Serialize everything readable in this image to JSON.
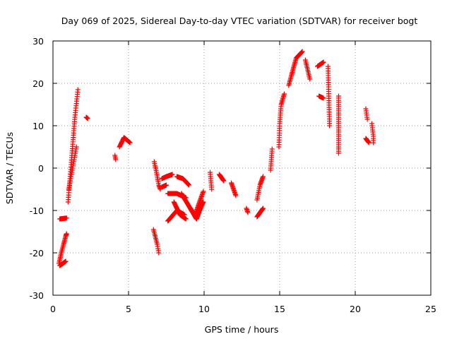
{
  "chart_data": {
    "type": "scatter",
    "title": "Day 069 of 2025, Sidereal Day-to-day VTEC variation (SDTVAR) for receiver bogt",
    "xlabel": "GPS time / hours",
    "ylabel": "SDTVAR / TECUs",
    "xlim": [
      0,
      25
    ],
    "ylim": [
      -30,
      30
    ],
    "xticks": [
      0,
      5,
      10,
      15,
      20,
      25
    ],
    "yticks": [
      -30,
      -20,
      -10,
      0,
      10,
      20,
      30
    ],
    "xtick_labels": [
      "0",
      "5",
      "10",
      "15",
      "20",
      "25"
    ],
    "ytick_labels": [
      "-30",
      "-20",
      "-10",
      "0",
      "10",
      "20",
      "30"
    ],
    "grid": true,
    "marker": "plus",
    "color": "#ff0000",
    "series": [
      {
        "name": "SDTVAR",
        "tracks": [
          [
            [
              0.45,
              -12.0
            ],
            [
              0.9,
              -11.8
            ]
          ],
          [
            [
              0.4,
              -22.5
            ],
            [
              0.55,
              -20.0
            ],
            [
              0.7,
              -18.0
            ],
            [
              0.85,
              -16.0
            ],
            [
              0.9,
              -15.5
            ]
          ],
          [
            [
              0.45,
              -23.0
            ],
            [
              0.85,
              -22.0
            ]
          ],
          [
            [
              1.0,
              -8.0
            ],
            [
              1.25,
              3.0
            ],
            [
              1.45,
              12.0
            ],
            [
              1.65,
              18.5
            ]
          ],
          [
            [
              1.05,
              -5.0
            ],
            [
              1.3,
              0.0
            ],
            [
              1.55,
              5.0
            ]
          ],
          [
            [
              2.2,
              12.0
            ],
            [
              2.3,
              11.7
            ]
          ],
          [
            [
              4.1,
              3.0
            ],
            [
              4.15,
              2.0
            ]
          ],
          [
            [
              4.4,
              5.0
            ],
            [
              4.7,
              7.2
            ],
            [
              5.1,
              6.0
            ]
          ],
          [
            [
              6.7,
              1.5
            ],
            [
              6.85,
              -1.0
            ],
            [
              7.0,
              -4.0
            ],
            [
              7.1,
              -5.0
            ]
          ],
          [
            [
              6.65,
              -14.5
            ],
            [
              6.9,
              -18.0
            ],
            [
              7.0,
              -20.0
            ]
          ],
          [
            [
              7.2,
              -2.5
            ],
            [
              7.5,
              -2.0
            ],
            [
              7.9,
              -1.5
            ]
          ],
          [
            [
              7.2,
              -4.5
            ],
            [
              7.5,
              -4.0
            ]
          ],
          [
            [
              7.6,
              -12.5
            ],
            [
              8.2,
              -10.0
            ],
            [
              8.7,
              -11.0
            ]
          ],
          [
            [
              7.6,
              -6.0
            ],
            [
              8.2,
              -6.0
            ],
            [
              8.8,
              -7.0
            ]
          ],
          [
            [
              8.2,
              -2.0
            ],
            [
              8.6,
              -2.5
            ],
            [
              9.0,
              -4.0
            ]
          ],
          [
            [
              8.5,
              -6.0
            ],
            [
              9.0,
              -9.0
            ],
            [
              9.5,
              -12.0
            ]
          ],
          [
            [
              8.0,
              -8.0
            ],
            [
              8.4,
              -11.0
            ],
            [
              8.8,
              -12.0
            ]
          ],
          [
            [
              9.4,
              -11.0
            ],
            [
              9.7,
              -8.0
            ],
            [
              9.95,
              -5.5
            ]
          ],
          [
            [
              9.1,
              -9.5
            ],
            [
              9.5,
              -12.0
            ],
            [
              9.9,
              -8.0
            ]
          ],
          [
            [
              9.5,
              -12.0
            ],
            [
              9.7,
              -10.0
            ],
            [
              9.95,
              -8.0
            ]
          ],
          [
            [
              10.4,
              -1.0
            ],
            [
              10.5,
              -5.0
            ]
          ],
          [
            [
              11.0,
              -1.5
            ],
            [
              11.3,
              -3.0
            ]
          ],
          [
            [
              11.8,
              -3.5
            ],
            [
              12.1,
              -6.5
            ]
          ],
          [
            [
              12.8,
              -9.5
            ],
            [
              12.9,
              -10.5
            ]
          ],
          [
            [
              13.5,
              -11.5
            ],
            [
              13.9,
              -9.5
            ]
          ],
          [
            [
              13.5,
              -7.5
            ],
            [
              13.7,
              -4.0
            ],
            [
              13.9,
              -2.0
            ]
          ],
          [
            [
              14.4,
              -0.5
            ],
            [
              14.5,
              4.5
            ]
          ],
          [
            [
              14.95,
              5.0
            ],
            [
              15.0,
              10.5
            ],
            [
              15.1,
              15.0
            ],
            [
              15.3,
              17.5
            ]
          ],
          [
            [
              15.6,
              19.5
            ],
            [
              15.9,
              23.5
            ],
            [
              16.1,
              26.0
            ],
            [
              16.5,
              27.5
            ]
          ],
          [
            [
              16.7,
              25.5
            ],
            [
              17.0,
              21.0
            ]
          ],
          [
            [
              17.5,
              24.0
            ],
            [
              17.9,
              25.0
            ]
          ],
          [
            [
              17.6,
              17.0
            ],
            [
              17.9,
              16.5
            ]
          ],
          [
            [
              18.2,
              24.0
            ],
            [
              18.3,
              10.0
            ]
          ],
          [
            [
              18.9,
              17.0
            ],
            [
              18.9,
              12.0
            ],
            [
              18.9,
              7.0
            ],
            [
              18.9,
              3.5
            ]
          ],
          [
            [
              20.7,
              14.0
            ],
            [
              20.8,
              11.5
            ]
          ],
          [
            [
              20.7,
              7.0
            ],
            [
              20.9,
              6.0
            ]
          ],
          [
            [
              21.1,
              10.5
            ],
            [
              21.2,
              7.5
            ],
            [
              21.2,
              6.0
            ]
          ]
        ]
      }
    ]
  }
}
